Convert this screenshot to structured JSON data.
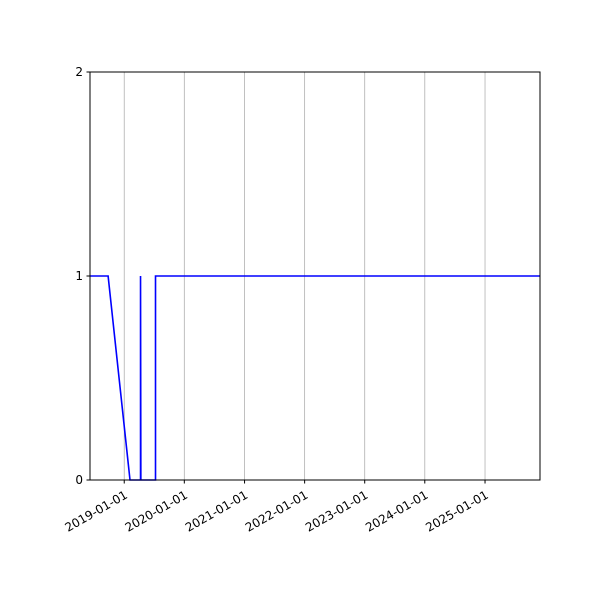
{
  "chart_data": {
    "type": "line",
    "title": "",
    "xlabel": "",
    "ylabel": "",
    "x_axis_type": "date",
    "xlim": [
      "2018-06-07",
      "2025-12-01"
    ],
    "ylim": [
      0,
      2
    ],
    "grid": "x-only",
    "line_color": "#0000ff",
    "grid_color": "#b0b0b0",
    "x_ticks": [
      "2019-01-01",
      "2020-01-01",
      "2021-01-01",
      "2022-01-01",
      "2023-01-01",
      "2024-01-01",
      "2025-01-01"
    ],
    "y_ticks": [
      0,
      1,
      2
    ],
    "series": [
      {
        "x": [
          "2018-06-07",
          "2018-09-25",
          "2019-02-05",
          "2019-04-10",
          "2019-04-10",
          "2019-04-12",
          "2019-07-10",
          "2019-07-10",
          "2025-12-01"
        ],
        "y": [
          1,
          1,
          0,
          0,
          1,
          0,
          0,
          1,
          1
        ]
      }
    ]
  }
}
